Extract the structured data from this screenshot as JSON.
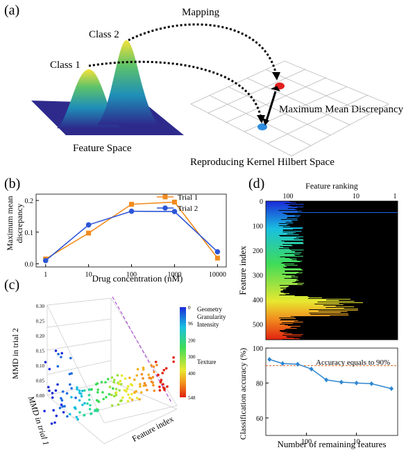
{
  "panels": {
    "a": {
      "label": "(a)",
      "mapping": "Mapping",
      "class1": "Class 1",
      "class2": "Class 2",
      "feature_space": "Feature Space",
      "mmd": "Maximum Mean Discrepancy",
      "rkhs": "Reproducing Kernel Hilbert Space",
      "colors": {
        "class1_point": "#2e8de0",
        "class2_point": "#e02020",
        "surface": "#2d2a8c"
      }
    },
    "b": {
      "label": "(b)",
      "ylabel_line1": "Maximum mean",
      "ylabel_line2": "discrepancy",
      "xlabel": "Drug concentration (nM)",
      "x_ticks": [
        "1",
        "10",
        "100",
        "1000",
        "10000"
      ],
      "y_ticks": [
        "0.0",
        "0.1",
        "0.2"
      ]
    },
    "c": {
      "label": "(c)",
      "z_ticks": [
        "0.00",
        "0.05",
        "0.10",
        "0.15",
        "0.20",
        "0.25",
        "0.30"
      ],
      "ylabel": "MMD in trial 2",
      "xlabel": "MMD in trial 1",
      "feature_axis": "Feature index",
      "colorbar_ticks": [
        "0",
        "96",
        "200",
        "300",
        "400",
        "548"
      ],
      "colorbar_labels": [
        "Geometry",
        "Granularity",
        "Intensity",
        "Texture"
      ]
    },
    "d": {
      "label": "(d)",
      "top_title": "Feature ranking",
      "top_x_ticks": [
        "100",
        "10",
        "1"
      ],
      "top_y_ticks": [
        "0",
        "100",
        "200",
        "300",
        "400",
        "500"
      ],
      "top_ylabel": "Feature index",
      "bottom_ylabel": "Classification accuracy (%)",
      "bottom_y_ticks": [
        "100",
        "80",
        "60"
      ],
      "bottom_xlabel": "Number of remaining features",
      "bottom_x_ticks": [
        "100",
        "10"
      ],
      "annotation": "Accuracy equals to 90%"
    }
  },
  "chart_data": [
    {
      "type": "line",
      "panel": "b",
      "xlabel": "Drug concentration (nM)",
      "ylabel": "Maximum mean discrepancy",
      "x_scale": "log",
      "x": [
        1,
        10,
        100,
        1000,
        10000
      ],
      "ylim": [
        -0.01,
        0.22
      ],
      "legend_position": "top-right",
      "series": [
        {
          "name": "Trial 1",
          "color": "#f28c1e",
          "marker": "square",
          "values": [
            0.015,
            0.097,
            0.188,
            0.195,
            0.018
          ]
        },
        {
          "name": "Trial 2",
          "color": "#2b55d6",
          "marker": "circle",
          "values": [
            0.01,
            0.123,
            0.166,
            0.165,
            0.038
          ]
        }
      ]
    },
    {
      "type": "line",
      "panel": "d-bottom",
      "xlabel": "Number of remaining features",
      "ylabel": "Classification accuracy (%)",
      "x_scale": "log-reversed",
      "ylim": [
        50,
        100
      ],
      "reference_line": 90,
      "series": [
        {
          "name": "",
          "color": "#2e86d0",
          "x": [
            548,
            300,
            150,
            80,
            40,
            20,
            10,
            5,
            2
          ],
          "values": [
            93.5,
            91.2,
            90.8,
            88.0,
            81.8,
            80.5,
            80.0,
            79.6,
            76.8
          ]
        }
      ]
    }
  ]
}
